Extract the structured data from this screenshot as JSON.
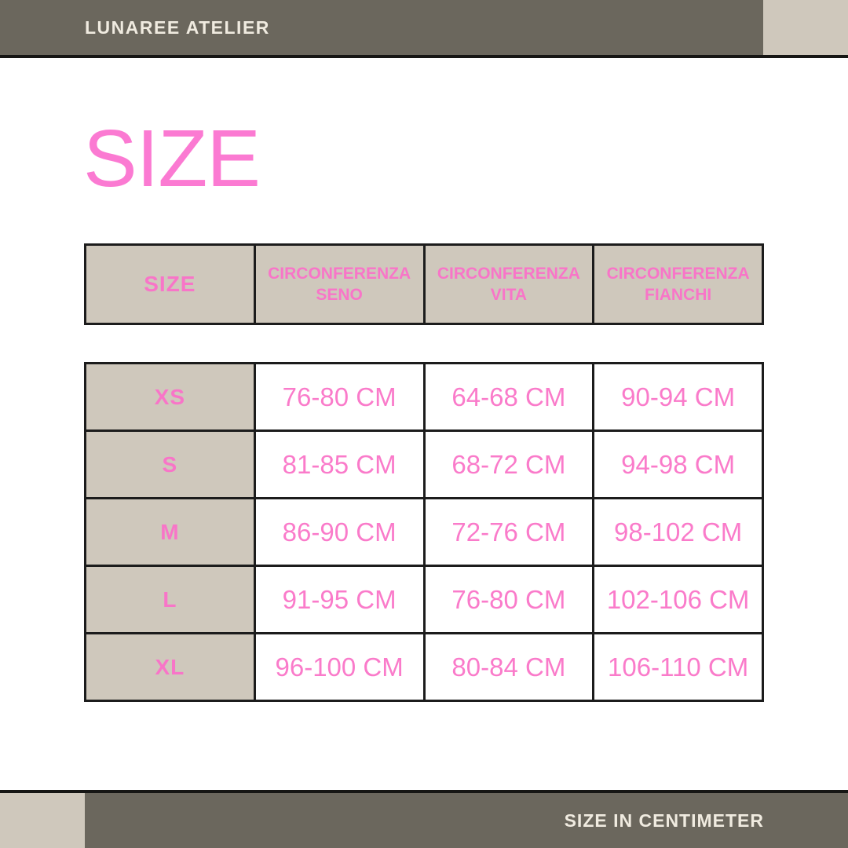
{
  "top_bar": {
    "brand": "LUNAREE ATELIER"
  },
  "title": "SIZE",
  "size_table": {
    "headers": [
      "SIZE",
      "CIRCONFERENZA SENO",
      "CIRCONFERENZA VITA",
      "CIRCONFERENZA FIANCHI"
    ],
    "rows": [
      {
        "size": "XS",
        "bust": "76-80 CM",
        "waist": "64-68 CM",
        "hips": "90-94 CM"
      },
      {
        "size": "S",
        "bust": "81-85 CM",
        "waist": "68-72 CM",
        "hips": "94-98 CM"
      },
      {
        "size": "M",
        "bust": "86-90 CM",
        "waist": "72-76 CM",
        "hips": "98-102 CM"
      },
      {
        "size": "L",
        "bust": "91-95 CM",
        "waist": "76-80 CM",
        "hips": "102-106 CM"
      },
      {
        "size": "XL",
        "bust": "96-100 CM",
        "waist": "80-84 CM",
        "hips": "106-110 CM"
      }
    ]
  },
  "bottom_bar": {
    "note": "SIZE IN CENTIMETER"
  },
  "colors": {
    "bar_background": "#6B675D",
    "accent_beige": "#CFC8BC",
    "title_pink": "#FB7AD2",
    "table_pink": "#F97AC9",
    "bar_text_cream": "#F0EBE0",
    "table_border": "#1C1C1C",
    "page_background": "#FFFFFF"
  }
}
